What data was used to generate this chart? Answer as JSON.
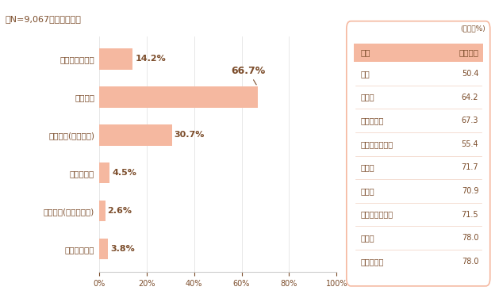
{
  "title": "［N=9,067／複数回答］",
  "categories": [
    "医師の診察のみ",
    "薬物治療",
    "外科療法(手術など)",
    "放射線治療",
    "人工透析(慢性脹不全)",
    "その他の療法"
  ],
  "values": [
    14.2,
    66.7,
    30.7,
    4.5,
    2.6,
    3.8
  ],
  "bar_color": "#F5B8A0",
  "text_color": "#7B4C2A",
  "background_color": "#FFFFFF",
  "xlim": [
    0,
    100
  ],
  "xticks": [
    0,
    20,
    40,
    60,
    80,
    100
  ],
  "xtick_labels": [
    "0%",
    "20%",
    "40%",
    "60%",
    "80%",
    "100%"
  ],
  "table_unit": "(単位：%)",
  "table_header_col1": "疾病",
  "table_header_col2": "薬物治療",
  "table_header_bg": "#F5B8A0",
  "table_diseases": [
    "がん",
    "心疾患",
    "脳血管疾患",
    "動脈・静脈疾患",
    "賢疾患",
    "肝疾患",
    "膜》すい「疾患",
    "糖尿病",
    "脂質異常症"
  ],
  "table_values": [
    "50.4",
    "64.2",
    "67.3",
    "55.4",
    "71.7",
    "70.9",
    "71.5",
    "78.0",
    "78.0"
  ],
  "callout_bar_index": 1,
  "separator_color": "#F0D0C0",
  "border_color": "#F5B8A0",
  "grid_color": "#DDDDDD"
}
